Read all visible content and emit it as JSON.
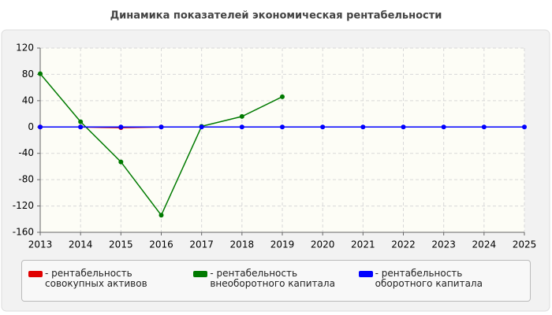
{
  "chart_data": {
    "type": "line",
    "title": "Динамика показателей экономическая рентабельности",
    "x": [
      2013,
      2014,
      2015,
      2016,
      2017,
      2018,
      2019,
      2020,
      2021,
      2022,
      2023,
      2024,
      2025
    ],
    "xlim": [
      2013,
      2025
    ],
    "xticks": [
      2013,
      2014,
      2015,
      2016,
      2017,
      2018,
      2019,
      2020,
      2021,
      2022,
      2023,
      2024,
      2025
    ],
    "ylim": [
      -160,
      120
    ],
    "yticks": [
      -160,
      -120,
      -80,
      -40,
      0,
      40,
      80,
      120
    ],
    "grid": true,
    "series": [
      {
        "name": "- рентабельность совокупных активов",
        "color": "#e00000",
        "values": [
          0,
          0,
          -1,
          0,
          null,
          null,
          null,
          null,
          null,
          null,
          null,
          null,
          null
        ]
      },
      {
        "name": "- рентабельность внеоборотного капитала",
        "color": "#007a00",
        "values": [
          81,
          8,
          -53,
          -134,
          1,
          16,
          46,
          null,
          null,
          null,
          null,
          null,
          null
        ]
      },
      {
        "name": "- рентабельность оборотного капитала",
        "color": "#0000ff",
        "values": [
          0,
          0,
          0,
          0,
          0,
          0,
          0,
          0,
          0,
          0,
          0,
          0,
          0
        ]
      }
    ]
  }
}
